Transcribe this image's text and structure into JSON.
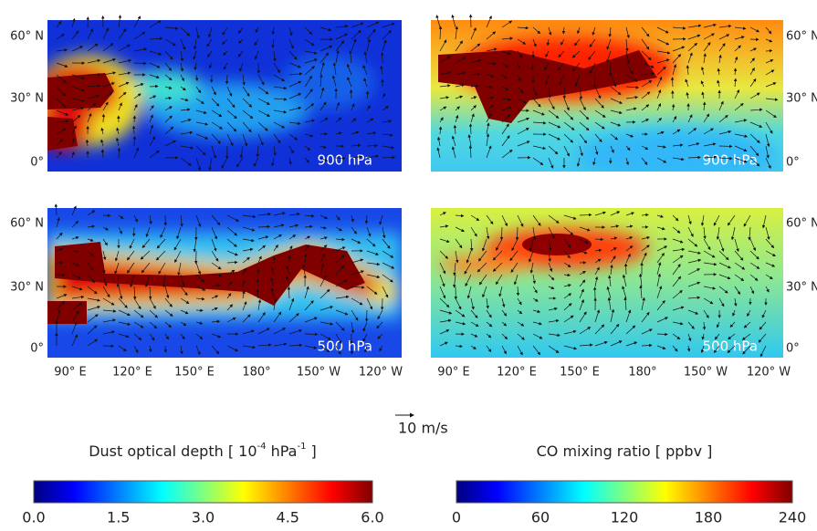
{
  "panels": [
    {
      "label": "900 hPa"
    },
    {
      "label": "900 hPa"
    },
    {
      "label": "500 hPa"
    },
    {
      "label": "500 hPa"
    }
  ],
  "lat_labels": [
    "60° N",
    "30° N",
    "0°"
  ],
  "lon_labels": [
    "90° E",
    "120° E",
    "150° E",
    "180°",
    "150° W",
    "120° W"
  ],
  "scale_label": "10 m/s",
  "colorbars": [
    {
      "title_segments": [
        "Dust optical depth [ 10",
        "-4",
        " hPa",
        "-1",
        " ]"
      ],
      "ticks": [
        "0.0",
        "1.5",
        "3.0",
        "4.5",
        "6.0"
      ]
    },
    {
      "title_segments": [
        "CO mixing ratio [ ppbv ]"
      ],
      "ticks": [
        "0",
        "60",
        "120",
        "180",
        "240"
      ]
    }
  ]
}
